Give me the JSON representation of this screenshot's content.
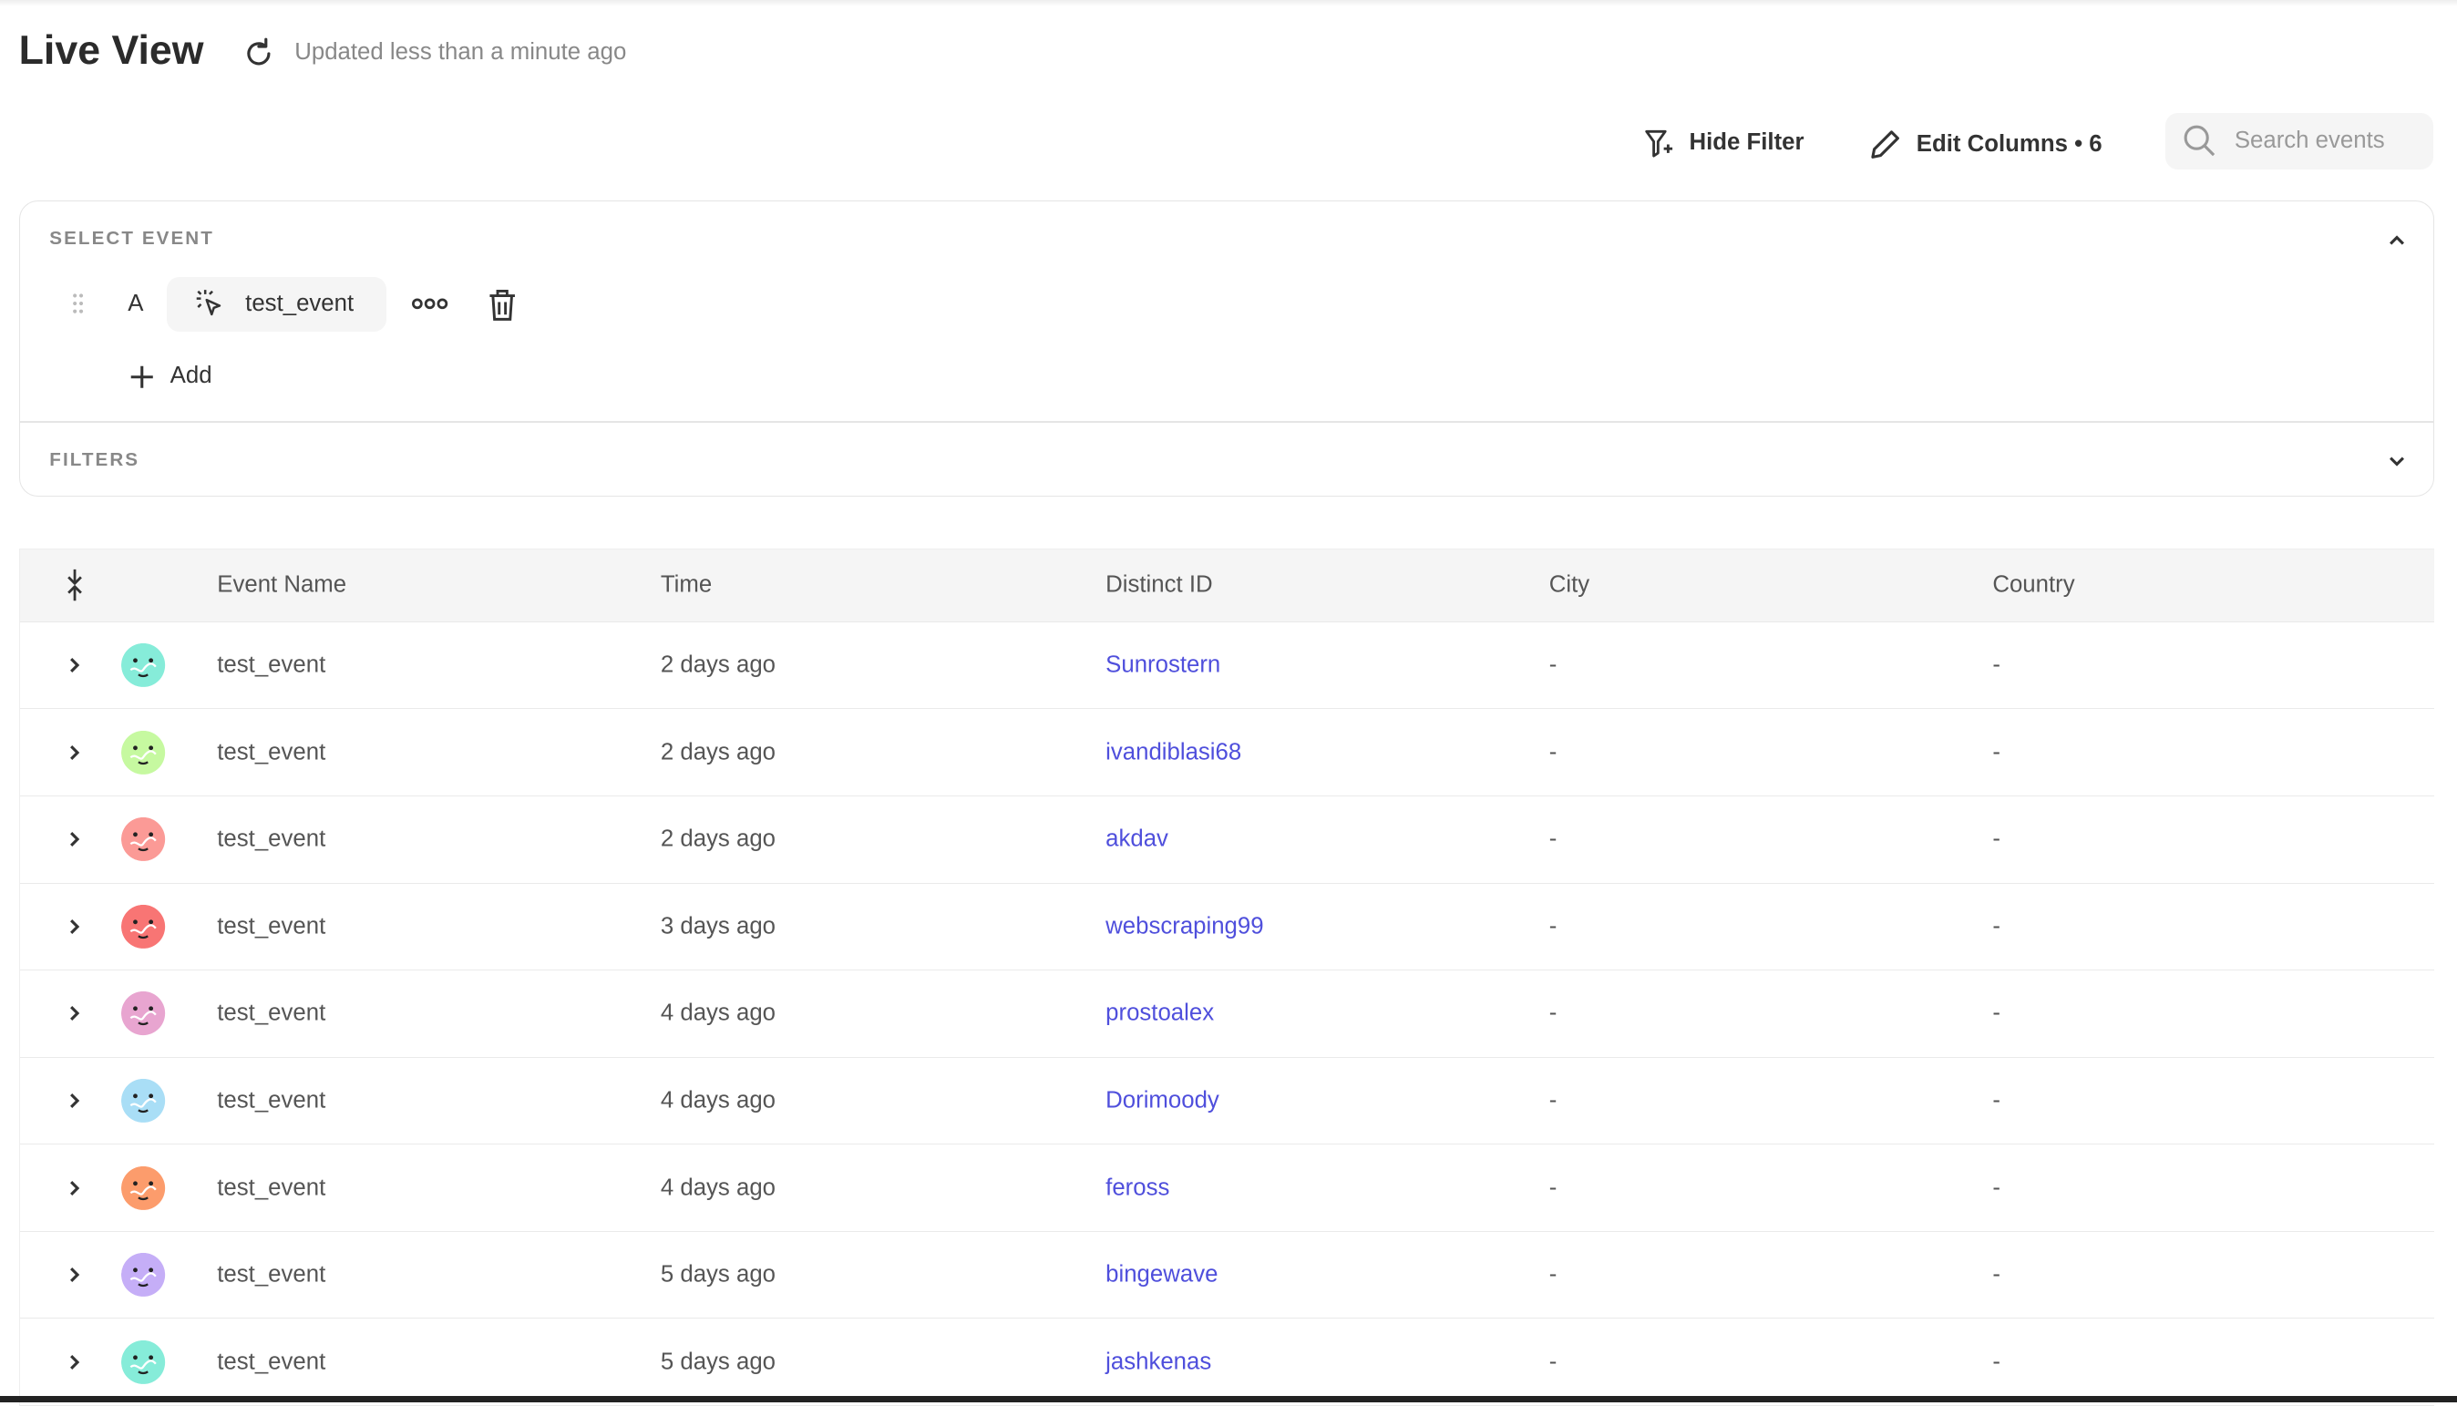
{
  "header": {
    "title": "Live View",
    "updated": "Updated less than a minute ago"
  },
  "toolbar": {
    "hide_filter": "Hide Filter",
    "edit_columns": "Edit Columns • 6",
    "search_placeholder": "Search events"
  },
  "select_event": {
    "label": "SELECT EVENT",
    "letter": "A",
    "event": "test_event",
    "add": "Add"
  },
  "filters": {
    "label": "FILTERS"
  },
  "table": {
    "columns": [
      "Event Name",
      "Time",
      "Distinct ID",
      "City",
      "Country"
    ],
    "rows": [
      {
        "event": "test_event",
        "time": "2 days ago",
        "distinct_id": "Sunrostern",
        "city": "-",
        "country": "-",
        "avatar_color": "#86ecd9"
      },
      {
        "event": "test_event",
        "time": "2 days ago",
        "distinct_id": "ivandiblasi68",
        "city": "-",
        "country": "-",
        "avatar_color": "#c6f9a0"
      },
      {
        "event": "test_event",
        "time": "2 days ago",
        "distinct_id": "akdav",
        "city": "-",
        "country": "-",
        "avatar_color": "#fb9a96"
      },
      {
        "event": "test_event",
        "time": "3 days ago",
        "distinct_id": "webscraping99",
        "city": "-",
        "country": "-",
        "avatar_color": "#f87574"
      },
      {
        "event": "test_event",
        "time": "4 days ago",
        "distinct_id": "prostoalex",
        "city": "-",
        "country": "-",
        "avatar_color": "#e8a5d0"
      },
      {
        "event": "test_event",
        "time": "4 days ago",
        "distinct_id": "Dorimoody",
        "city": "-",
        "country": "-",
        "avatar_color": "#a9def6"
      },
      {
        "event": "test_event",
        "time": "4 days ago",
        "distinct_id": "feross",
        "city": "-",
        "country": "-",
        "avatar_color": "#fc9c6c"
      },
      {
        "event": "test_event",
        "time": "5 days ago",
        "distinct_id": "bingewave",
        "city": "-",
        "country": "-",
        "avatar_color": "#c5aef7"
      },
      {
        "event": "test_event",
        "time": "5 days ago",
        "distinct_id": "jashkenas",
        "city": "-",
        "country": "-",
        "avatar_color": "#86ecd9"
      }
    ]
  },
  "colors": {
    "link": "#4f4fdc",
    "header_bg": "#f5f5f5"
  }
}
